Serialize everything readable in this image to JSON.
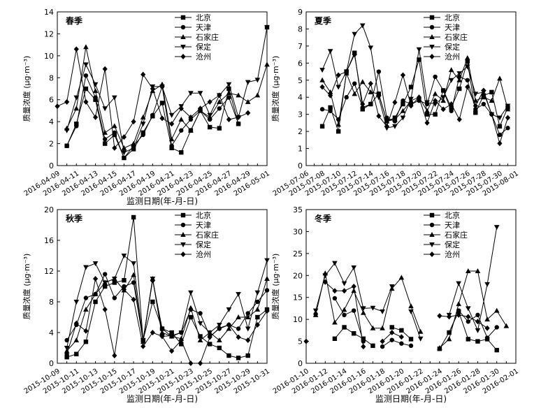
{
  "legend": [
    "北京",
    "天津",
    "石家庄",
    "保定",
    "沧州"
  ],
  "chart_data": [
    {
      "type": "line",
      "title": "春季",
      "xlabel": "监测日期(年-月-日)",
      "ylabel": "质量浓度 (μg·m⁻³)",
      "ylim": [
        0,
        14
      ],
      "yticks": [
        "0",
        "2",
        "4",
        "6",
        "8",
        "10",
        "12",
        "14"
      ],
      "x_start": "2016-04-09",
      "x_count": 23,
      "x_ticks": [
        "2016-04-09",
        "2016-04-11",
        "2016-04-13",
        "2016-04-15",
        "2016-04-17",
        "2016-04-19",
        "2016-04-21",
        "2016-04-23",
        "2016-04-25",
        "2016-04-27",
        "2016-04-29",
        "2016-05-01"
      ],
      "series": [
        {
          "name": "北京",
          "values": [
            null,
            1.8,
            3.8,
            7.0,
            6.0,
            2.0,
            2.8,
            0.7,
            1.5,
            3.0,
            4.5,
            5.7,
            1.6,
            1.2,
            3.2,
            5.0,
            3.5,
            3.4,
            7.0,
            3.8,
            null,
            null,
            12.6
          ]
        },
        {
          "name": "天津",
          "values": [
            null,
            1.8,
            3.6,
            8.2,
            6.2,
            2.4,
            3.0,
            0.7,
            1.8,
            2.8,
            4.6,
            7.2,
            1.8,
            3.2,
            4.2,
            5.0,
            4.2,
            5.2,
            6.2,
            3.8,
            null,
            null,
            null
          ]
        },
        {
          "name": "石家庄",
          "values": [
            null,
            3.4,
            5.2,
            10.8,
            6.8,
            3.0,
            3.6,
            1.6,
            2.0,
            4.4,
            6.8,
            7.4,
            2.4,
            4.2,
            3.2,
            5.0,
            4.4,
            5.8,
            6.6,
            6.4,
            5.8,
            6.4,
            9.2
          ]
        },
        {
          "name": "保定",
          "values": [
            null,
            3.2,
            6.2,
            9.2,
            7.4,
            5.2,
            6.2,
            1.2,
            1.6,
            3.8,
            7.2,
            7.2,
            4.6,
            5.4,
            6.6,
            6.6,
            4.6,
            6.4,
            7.4,
            4.4,
            7.6,
            7.8,
            12.6
          ]
        },
        {
          "name": "沧州",
          "values": [
            5.4,
            5.8,
            10.6,
            5.8,
            4.4,
            8.8,
            1.6,
            2.6,
            4.0,
            8.3,
            7.0,
            4.3,
            3.8,
            5.2,
            4.4,
            5.2,
            5.8,
            6.4,
            4.2,
            4.4,
            4.8,
            null,
            null
          ]
        }
      ]
    },
    {
      "type": "line",
      "title": "夏季",
      "xlabel": "",
      "ylabel": "质量浓度 (μg·m⁻³)",
      "ylim": [
        0,
        9
      ],
      "yticks": [
        "0",
        "1",
        "2",
        "3",
        "4",
        "5",
        "6",
        "7",
        "8",
        "9"
      ],
      "x_start": "2015-07-06",
      "x_count": 27,
      "x_ticks": [
        "2015-07-06",
        "2015-07-08",
        "2015-07-10",
        "2015-07-12",
        "2015-07-14",
        "2015-07-16",
        "2015-07-18",
        "2015-07-20",
        "2015-07-22",
        "2015-07-24",
        "2015-07-26",
        "2015-07-28",
        "2015-07-30",
        "2015-08-01"
      ],
      "series": [
        {
          "name": "北京",
          "values": [
            null,
            null,
            2.3,
            3.4,
            2.0,
            5.5,
            6.6,
            3.3,
            3.6,
            4.2,
            2.6,
            2.8,
            3.6,
            4.6,
            6.2,
            3.0,
            3.0,
            4.4,
            3.4,
            4.5,
            6.1,
            3.1,
            4.1,
            4.3,
            2.3,
            3.4,
            null
          ]
        },
        {
          "name": "天津",
          "values": [
            null,
            null,
            3.3,
            3.2,
            2.7,
            4.0,
            4.8,
            3.4,
            3.6,
            5.5,
            2.8,
            2.6,
            3.8,
            3.6,
            3.8,
            3.6,
            5.2,
            4.4,
            3.2,
            5.2,
            5.0,
            3.3,
            3.6,
            3.0,
            1.8,
            2.2,
            null
          ]
        },
        {
          "name": "石家庄",
          "values": [
            null,
            null,
            5.0,
            4.3,
            2.4,
            5.4,
            4.2,
            4.9,
            4.3,
            4.2,
            2.6,
            2.7,
            3.2,
            3.8,
            4.0,
            3.2,
            4.2,
            3.8,
            5.6,
            5.0,
            6.3,
            3.8,
            4.0,
            3.8,
            5.1,
            3.3,
            null
          ]
        },
        {
          "name": "保定",
          "values": [
            null,
            null,
            5.6,
            6.7,
            4.6,
            5.5,
            7.7,
            8.2,
            6.9,
            4.0,
            2.2,
            2.3,
            2.8,
            3.9,
            6.8,
            3.7,
            3.6,
            4.0,
            5.0,
            5.4,
            5.8,
            4.2,
            4.3,
            3.0,
            2.8,
            3.5,
            null
          ]
        },
        {
          "name": "沧州",
          "values": [
            null,
            null,
            4.6,
            4.1,
            5.3,
            5.5,
            6.5,
            3.6,
            4.8,
            2.9,
            2.3,
            3.7,
            5.3,
            3.5,
            4.0,
            2.5,
            3.8,
            3.3,
            3.6,
            2.7,
            4.6,
            3.5,
            4.4,
            3.0,
            1.3,
            2.8,
            null
          ]
        }
      ]
    },
    {
      "type": "line",
      "title": "秋季",
      "xlabel": "监测日期(年-月-日)",
      "ylabel": "质量浓度 (μg·m⁻³)",
      "ylim": [
        0,
        20
      ],
      "yticks": [
        "0",
        "4",
        "8",
        "12",
        "16",
        "20"
      ],
      "x_start": "2015-10-09",
      "x_count": 23,
      "x_ticks": [
        "2015-10-09",
        "2015-10-11",
        "2015-10-13",
        "2015-10-15",
        "2015-10-17",
        "2015-10-19",
        "2015-10-21",
        "2015-10-23",
        "2015-10-25",
        "2015-10-27",
        "2015-10-29",
        "2015-10-31"
      ],
      "series": [
        {
          "name": "北京",
          "values": [
            null,
            0.8,
            1.2,
            2.8,
            8.0,
            10.0,
            10.5,
            10.8,
            19.0,
            3.0,
            8.0,
            4.5,
            4.0,
            2.5,
            6.0,
            3.5,
            2.5,
            2.0,
            1.0,
            0.7,
            1.0,
            6.0,
            7.0
          ]
        },
        {
          "name": "天津",
          "values": [
            null,
            3.0,
            5.0,
            8.5,
            9.0,
            11.6,
            8.5,
            10.0,
            10.5,
            3.0,
            10.8,
            4.5,
            3.5,
            4.0,
            7.0,
            6.5,
            3.5,
            4.5,
            5.0,
            4.5,
            6.5,
            8.0,
            9.5
          ]
        },
        {
          "name": "天津",
          "values": [
            null,
            null,
            null,
            null,
            null,
            null,
            null,
            null,
            null,
            null,
            null,
            null,
            null,
            null,
            null,
            null,
            null,
            null,
            null,
            null,
            null,
            null,
            null
          ]
        },
        {
          "name": "石家庄",
          "values": [
            null,
            1.6,
            3.0,
            7.0,
            9.0,
            10.5,
            11.0,
            9.5,
            11.5,
            2.8,
            11.0,
            4.0,
            3.5,
            3.2,
            7.2,
            3.0,
            4.0,
            3.0,
            4.5,
            6.0,
            6.0,
            7.0,
            11.0
          ]
        },
        {
          "name": "保定",
          "values": [
            null,
            2.0,
            8.0,
            12.5,
            13.0,
            10.5,
            11.0,
            14.0,
            13.0,
            3.0,
            11.0,
            3.5,
            3.6,
            4.0,
            9.2,
            5.2,
            4.0,
            5.0,
            7.0,
            9.0,
            4.5,
            9.2,
            13.4
          ]
        },
        {
          "name": "沧州",
          "values": [
            null,
            1.2,
            5.2,
            4.2,
            11.0,
            7.0,
            1.0,
            9.6,
            8.3,
            2.2,
            4.0,
            3.5,
            1.6,
            3.0,
            0.0,
            0.0,
            3.4,
            4.6,
            5.0,
            3.4,
            3.0,
            5.0,
            6.8
          ]
        }
      ]
    },
    {
      "type": "line",
      "title": "冬季",
      "xlabel": "监测日期(年-月-日)",
      "ylabel": "质量浓度 (μg·m⁻³)",
      "ylim": [
        0,
        35
      ],
      "yticks": [
        "0",
        "5",
        "10",
        "15",
        "20",
        "25",
        "30",
        "35"
      ],
      "x_start": "2016-01-10",
      "x_count": 23,
      "x_ticks": [
        "2016-01-10",
        "2016-01-12",
        "2016-01-14",
        "2016-01-16",
        "2016-01-18",
        "2016-01-20",
        "2016-01-22",
        "2016-01-24",
        "2016-01-26",
        "2016-01-28",
        "2016-01-30",
        "2016-02-01"
      ],
      "series": [
        {
          "name": "北京",
          "values": [
            null,
            null,
            null,
            5.6,
            8.2,
            6.8,
            5.6,
            4.0,
            null,
            8.2,
            7.5,
            5.5,
            null,
            null,
            3.3,
            7.0,
            11.8,
            5.5,
            5.0,
            5.5,
            3.0,
            null,
            null
          ]
        },
        {
          "name": "天津",
          "values": [
            null,
            11.2,
            null,
            14.8,
            11.0,
            12.0,
            5.0,
            null,
            3.8,
            5.3,
            4.5,
            4.0,
            null,
            null,
            null,
            7.0,
            12.0,
            9.5,
            11.0,
            5.8,
            8.2,
            null,
            null
          ]
        },
        {
          "name": "石家庄",
          "values": [
            null,
            11.0,
            20.5,
            9.3,
            12.2,
            16.5,
            11.5,
            8.0,
            8.0,
            17.0,
            19.5,
            13.0,
            7.2,
            null,
            3.5,
            5.5,
            13.5,
            21.0,
            21.0,
            10.0,
            12.0,
            8.5,
            null
          ]
        },
        {
          "name": "保定",
          "values": [
            null,
            12.0,
            20.0,
            22.8,
            18.2,
            21.8,
            12.5,
            12.6,
            11.8,
            17.5,
            null,
            11.8,
            5.6,
            null,
            null,
            11.0,
            18.2,
            12.5,
            7.5,
            18.0,
            31.0,
            null,
            null
          ]
        },
        {
          "name": "沧州",
          "values": [
            5.0,
            null,
            18.5,
            16.5,
            16.5,
            17.5,
            3.8,
            null,
            5.0,
            7.0,
            6.0,
            null,
            null,
            null,
            10.8,
            10.6,
            11.0,
            10.6,
            9.5,
            8.0,
            null,
            null,
            null
          ]
        }
      ]
    }
  ]
}
